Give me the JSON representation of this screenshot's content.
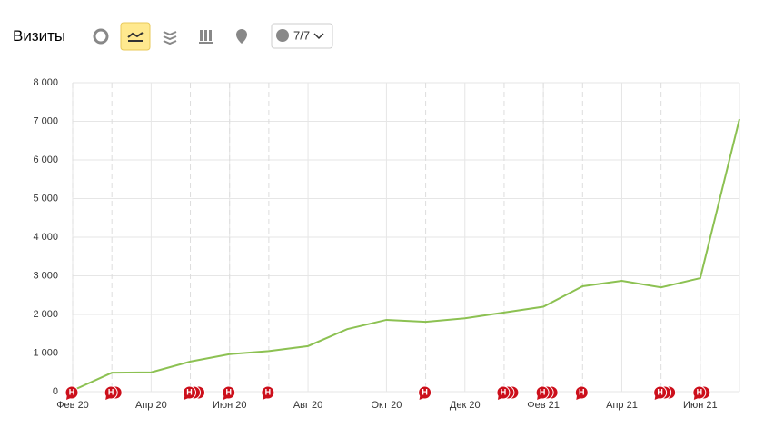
{
  "header": {
    "title": "Визиты",
    "series_selector": "7/7"
  },
  "chart_data": {
    "type": "line",
    "categories": [
      "Фев 20",
      null,
      "Апр 20",
      null,
      "Июн 20",
      null,
      "Авг 20",
      null,
      "Окт 20",
      null,
      "Дек 20",
      null,
      "Фев 21",
      null,
      "Апр 21",
      null,
      "Июн 21",
      null
    ],
    "series": [
      {
        "name": "Визиты",
        "color": "#8cc152",
        "values": [
          30,
          490,
          500,
          780,
          970,
          1050,
          1180,
          1620,
          1860,
          1810,
          1900,
          2050,
          2200,
          2730,
          2870,
          2700,
          2940,
          7060
        ]
      }
    ],
    "ylim": [
      0,
      8000
    ],
    "yticks": [
      0,
      {
        "value": 1000,
        "label": "1 000"
      },
      {
        "value": 2000,
        "label": "2 000"
      },
      {
        "value": 3000,
        "label": "3 000"
      },
      {
        "value": 4000,
        "label": "4 000"
      },
      {
        "value": 5000,
        "label": "5 000"
      },
      {
        "value": 6000,
        "label": "6 000"
      },
      {
        "value": 7000,
        "label": "7 000"
      },
      {
        "value": 8000,
        "label": "8 000"
      }
    ],
    "grid": true,
    "annotations": [
      {
        "at": 0,
        "count": 1,
        "label": "Н"
      },
      {
        "at": 1,
        "count": 2,
        "label": "Н"
      },
      {
        "at": 3,
        "count": 3,
        "label": "Н"
      },
      {
        "at": 4,
        "count": 1,
        "label": "Н"
      },
      {
        "at": 5,
        "count": 1,
        "label": "Н"
      },
      {
        "at": 9,
        "count": 1,
        "label": "Н"
      },
      {
        "at": 11,
        "count": 3,
        "label": "Н"
      },
      {
        "at": 12,
        "count": 3,
        "label": "Н"
      },
      {
        "at": 13,
        "count": 1,
        "label": "Н"
      },
      {
        "at": 15,
        "count": 3,
        "label": "Н"
      },
      {
        "at": 16,
        "count": 2,
        "label": "Н"
      }
    ]
  }
}
